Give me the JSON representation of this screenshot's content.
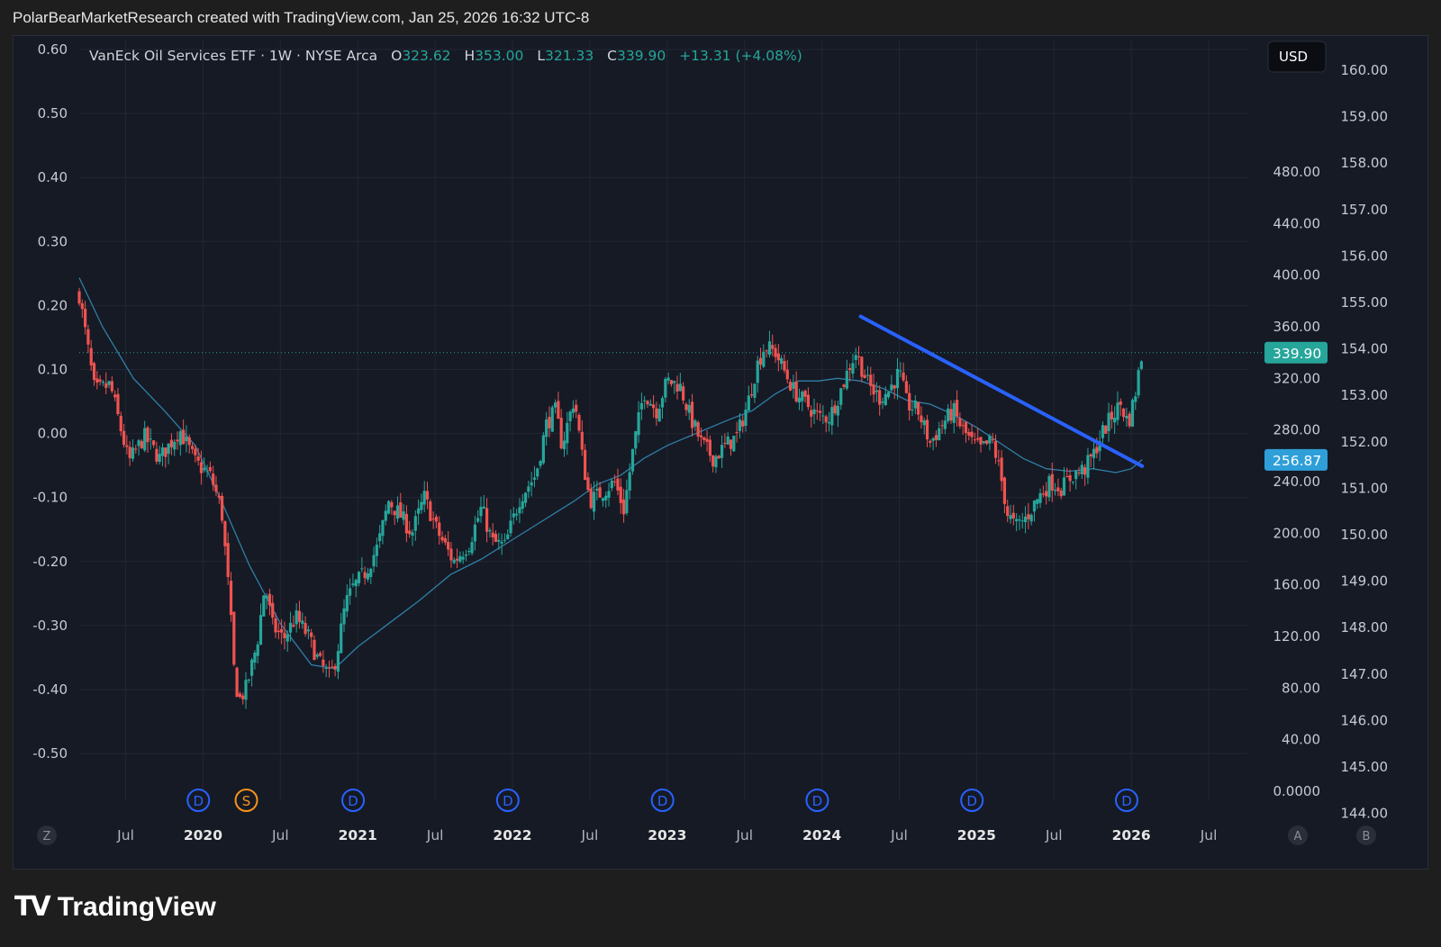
{
  "header": {
    "caption": "PolarBearMarketResearch created with TradingView.com, Jan 25, 2026 16:32 UTC-8"
  },
  "legend": {
    "symbol": "VanEck Oil Services ETF · 1W · NYSE Arca",
    "o_label": "O",
    "o_value": "323.62",
    "h_label": "H",
    "h_value": "353.00",
    "l_label": "L",
    "l_value": "321.33",
    "c_label": "C",
    "c_value": "339.90",
    "change": "+13.31 (+4.08%)"
  },
  "currency_button": "USD",
  "price_badges": {
    "last": "339.90",
    "ma": "256.87"
  },
  "scale_buttons": {
    "left": "Z",
    "a": "A",
    "b": "B"
  },
  "footer": {
    "brand": "TradingView"
  },
  "colors": {
    "up": "#26a69a",
    "down": "#ef5350",
    "ma": "#2f7fa6",
    "trendline": "#2962ff",
    "background": "#161a25",
    "event_dividend": "#2962ff",
    "event_split": "#f7931a"
  },
  "chart_data": {
    "type": "candlestick",
    "title": "VanEck Oil Services ETF · 1W · NYSE Arca",
    "left_axis": {
      "ticks": [
        "0.60",
        "0.50",
        "0.40",
        "0.30",
        "0.20",
        "0.10",
        "0.00",
        "-0.10",
        "-0.20",
        "-0.30",
        "-0.40",
        "-0.50"
      ]
    },
    "price_axis": {
      "ticks": [
        "480.00",
        "440.00",
        "400.00",
        "360.00",
        "320.00",
        "280.00",
        "240.00",
        "200.00",
        "160.00",
        "120.00",
        "80.00",
        "40.00",
        "0.0000"
      ],
      "ylim": [
        0,
        480
      ]
    },
    "secondary_axis": {
      "ticks": [
        "160.00",
        "159.00",
        "158.00",
        "157.00",
        "156.00",
        "155.00",
        "154.00",
        "153.00",
        "152.00",
        "151.00",
        "150.00",
        "149.00",
        "148.00",
        "147.00",
        "146.00",
        "145.00",
        "144.00"
      ]
    },
    "x_axis": {
      "ticks": [
        "Jul",
        "2020",
        "Jul",
        "2021",
        "Jul",
        "2022",
        "Jul",
        "2023",
        "Jul",
        "2024",
        "Jul",
        "2025",
        "Jul",
        "2026",
        "Jul"
      ],
      "bold": [
        false,
        true,
        false,
        true,
        false,
        true,
        false,
        true,
        false,
        true,
        false,
        true,
        false,
        true,
        false
      ],
      "range": [
        2019.2,
        2026.75
      ]
    },
    "price_path": [
      [
        2019.2,
        385
      ],
      [
        2019.3,
        310
      ],
      [
        2019.4,
        315
      ],
      [
        2019.52,
        255
      ],
      [
        2019.62,
        275
      ],
      [
        2019.72,
        258
      ],
      [
        2019.85,
        280
      ],
      [
        2019.95,
        255
      ],
      [
        2020.05,
        244
      ],
      [
        2020.12,
        218
      ],
      [
        2020.17,
        150
      ],
      [
        2020.2,
        95
      ],
      [
        2020.23,
        70
      ],
      [
        2020.28,
        80
      ],
      [
        2020.35,
        115
      ],
      [
        2020.4,
        160
      ],
      [
        2020.45,
        128
      ],
      [
        2020.52,
        118
      ],
      [
        2020.6,
        135
      ],
      [
        2020.68,
        120
      ],
      [
        2020.75,
        100
      ],
      [
        2020.82,
        88
      ],
      [
        2020.86,
        103
      ],
      [
        2020.92,
        145
      ],
      [
        2020.97,
        158
      ],
      [
        2021.05,
        170
      ],
      [
        2021.13,
        190
      ],
      [
        2021.2,
        225
      ],
      [
        2021.28,
        213
      ],
      [
        2021.35,
        200
      ],
      [
        2021.43,
        228
      ],
      [
        2021.52,
        200
      ],
      [
        2021.62,
        178
      ],
      [
        2021.72,
        192
      ],
      [
        2021.8,
        220
      ],
      [
        2021.87,
        193
      ],
      [
        2021.95,
        190
      ],
      [
        2022.05,
        228
      ],
      [
        2022.15,
        245
      ],
      [
        2022.22,
        285
      ],
      [
        2022.28,
        295
      ],
      [
        2022.32,
        268
      ],
      [
        2022.4,
        305
      ],
      [
        2022.45,
        260
      ],
      [
        2022.5,
        225
      ],
      [
        2022.58,
        232
      ],
      [
        2022.66,
        240
      ],
      [
        2022.72,
        218
      ],
      [
        2022.78,
        265
      ],
      [
        2022.85,
        310
      ],
      [
        2022.93,
        295
      ],
      [
        2023.0,
        318
      ],
      [
        2023.08,
        315
      ],
      [
        2023.15,
        290
      ],
      [
        2023.22,
        270
      ],
      [
        2023.3,
        258
      ],
      [
        2023.38,
        268
      ],
      [
        2023.45,
        275
      ],
      [
        2023.52,
        300
      ],
      [
        2023.58,
        330
      ],
      [
        2023.63,
        345
      ],
      [
        2023.7,
        340
      ],
      [
        2023.76,
        325
      ],
      [
        2023.82,
        310
      ],
      [
        2023.9,
        300
      ],
      [
        2023.98,
        290
      ],
      [
        2024.05,
        290
      ],
      [
        2024.12,
        310
      ],
      [
        2024.18,
        330
      ],
      [
        2024.22,
        340
      ],
      [
        2024.3,
        315
      ],
      [
        2024.37,
        305
      ],
      [
        2024.43,
        310
      ],
      [
        2024.5,
        325
      ],
      [
        2024.55,
        300
      ],
      [
        2024.62,
        295
      ],
      [
        2024.7,
        270
      ],
      [
        2024.78,
        285
      ],
      [
        2024.85,
        295
      ],
      [
        2024.9,
        282
      ],
      [
        2024.97,
        270
      ],
      [
        2025.03,
        265
      ],
      [
        2025.1,
        272
      ],
      [
        2025.15,
        248
      ],
      [
        2025.2,
        215
      ],
      [
        2025.25,
        205
      ],
      [
        2025.32,
        212
      ],
      [
        2025.4,
        228
      ],
      [
        2025.48,
        240
      ],
      [
        2025.55,
        235
      ],
      [
        2025.62,
        245
      ],
      [
        2025.7,
        250
      ],
      [
        2025.76,
        262
      ],
      [
        2025.8,
        275
      ],
      [
        2025.87,
        290
      ],
      [
        2025.93,
        300
      ],
      [
        2025.98,
        285
      ],
      [
        2026.02,
        305
      ],
      [
        2026.07,
        340
      ]
    ],
    "ma_path": [
      [
        2019.2,
        398
      ],
      [
        2019.35,
        360
      ],
      [
        2019.55,
        320
      ],
      [
        2019.75,
        295
      ],
      [
        2019.95,
        268
      ],
      [
        2020.1,
        230
      ],
      [
        2020.3,
        175
      ],
      [
        2020.5,
        130
      ],
      [
        2020.7,
        98
      ],
      [
        2020.85,
        95
      ],
      [
        2021.0,
        112
      ],
      [
        2021.2,
        130
      ],
      [
        2021.4,
        148
      ],
      [
        2021.6,
        168
      ],
      [
        2021.8,
        180
      ],
      [
        2022.0,
        195
      ],
      [
        2022.2,
        210
      ],
      [
        2022.4,
        225
      ],
      [
        2022.55,
        238
      ],
      [
        2022.7,
        245
      ],
      [
        2022.85,
        258
      ],
      [
        2023.0,
        268
      ],
      [
        2023.2,
        278
      ],
      [
        2023.4,
        288
      ],
      [
        2023.55,
        295
      ],
      [
        2023.7,
        308
      ],
      [
        2023.85,
        318
      ],
      [
        2023.98,
        318
      ],
      [
        2024.1,
        320
      ],
      [
        2024.25,
        318
      ],
      [
        2024.4,
        312
      ],
      [
        2024.55,
        303
      ],
      [
        2024.7,
        300
      ],
      [
        2024.85,
        292
      ],
      [
        2025.0,
        282
      ],
      [
        2025.15,
        270
      ],
      [
        2025.3,
        258
      ],
      [
        2025.45,
        250
      ],
      [
        2025.6,
        248
      ],
      [
        2025.75,
        250
      ],
      [
        2025.9,
        247
      ],
      [
        2026.0,
        250
      ],
      [
        2026.07,
        257
      ]
    ],
    "trendline": {
      "start": [
        2024.25,
        368
      ],
      "end": [
        2026.07,
        252
      ]
    },
    "last_price": 339.9,
    "ma_value": 256.87,
    "events": [
      {
        "x": 2019.97,
        "label": "D"
      },
      {
        "x": 2020.28,
        "label": "S"
      },
      {
        "x": 2020.97,
        "label": "D"
      },
      {
        "x": 2021.97,
        "label": "D"
      },
      {
        "x": 2022.97,
        "label": "D"
      },
      {
        "x": 2023.97,
        "label": "D"
      },
      {
        "x": 2024.97,
        "label": "D"
      },
      {
        "x": 2025.97,
        "label": "D"
      }
    ],
    "grid": true
  }
}
